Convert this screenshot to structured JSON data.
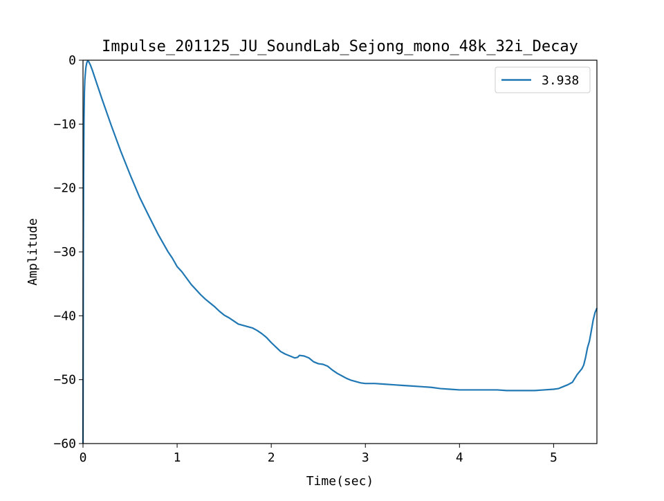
{
  "chart_data": {
    "type": "line",
    "title": "Impulse_201125_JU_SoundLab_Sejong_mono_48k_32i_Decay",
    "xlabel": "Time(sec)",
    "ylabel": "Amplitude",
    "xlim": [
      0,
      5.46
    ],
    "ylim": [
      -60,
      0
    ],
    "xticks": [
      0,
      1,
      2,
      3,
      4,
      5
    ],
    "xtick_labels": [
      "0",
      "1",
      "2",
      "3",
      "4",
      "5"
    ],
    "yticks": [
      0,
      -10,
      -20,
      -30,
      -40,
      -50,
      -60
    ],
    "ytick_labels": [
      "0",
      "−10",
      "−20",
      "−30",
      "−40",
      "−50",
      "−60"
    ],
    "grid": false,
    "legend_position": "top-right",
    "color": "#1f77b4",
    "series": [
      {
        "name": "3.938",
        "x": [
          0.0,
          0.003,
          0.006,
          0.01,
          0.015,
          0.02,
          0.03,
          0.04,
          0.05,
          0.06,
          0.08,
          0.1,
          0.15,
          0.2,
          0.3,
          0.4,
          0.5,
          0.6,
          0.7,
          0.8,
          0.85,
          0.9,
          0.95,
          1.0,
          1.05,
          1.1,
          1.15,
          1.2,
          1.25,
          1.3,
          1.35,
          1.4,
          1.45,
          1.5,
          1.55,
          1.6,
          1.65,
          1.7,
          1.75,
          1.8,
          1.85,
          1.9,
          1.95,
          2.0,
          2.05,
          2.1,
          2.15,
          2.2,
          2.25,
          2.28,
          2.3,
          2.35,
          2.4,
          2.45,
          2.5,
          2.55,
          2.6,
          2.65,
          2.7,
          2.75,
          2.8,
          2.85,
          2.9,
          2.95,
          3.0,
          3.1,
          3.2,
          3.3,
          3.4,
          3.5,
          3.6,
          3.7,
          3.8,
          3.9,
          4.0,
          4.1,
          4.2,
          4.3,
          4.4,
          4.5,
          4.6,
          4.7,
          4.8,
          4.9,
          5.0,
          5.05,
          5.1,
          5.15,
          5.2,
          5.25,
          5.3,
          5.32,
          5.34,
          5.36,
          5.38,
          5.4,
          5.42,
          5.44,
          5.46
        ],
        "y": [
          -60.0,
          -33.0,
          -20.0,
          -10.0,
          -5.0,
          -3.0,
          -1.2,
          -0.4,
          -0.1,
          -0.2,
          -0.8,
          -1.6,
          -3.8,
          -6.0,
          -10.2,
          -14.2,
          -17.9,
          -21.4,
          -24.4,
          -27.3,
          -28.6,
          -29.9,
          -31.0,
          -32.3,
          -33.1,
          -34.1,
          -35.1,
          -35.9,
          -36.7,
          -37.4,
          -38.0,
          -38.6,
          -39.3,
          -39.9,
          -40.3,
          -40.8,
          -41.3,
          -41.5,
          -41.7,
          -41.9,
          -42.3,
          -42.8,
          -43.4,
          -44.2,
          -44.9,
          -45.6,
          -46.0,
          -46.3,
          -46.6,
          -46.5,
          -46.2,
          -46.3,
          -46.6,
          -47.2,
          -47.5,
          -47.6,
          -47.9,
          -48.5,
          -49.0,
          -49.4,
          -49.8,
          -50.1,
          -50.3,
          -50.5,
          -50.6,
          -50.6,
          -50.7,
          -50.8,
          -50.9,
          -51.0,
          -51.1,
          -51.2,
          -51.4,
          -51.5,
          -51.6,
          -51.6,
          -51.6,
          -51.6,
          -51.6,
          -51.7,
          -51.7,
          -51.7,
          -51.7,
          -51.6,
          -51.5,
          -51.4,
          -51.1,
          -50.8,
          -50.4,
          -49.2,
          -48.3,
          -47.7,
          -46.5,
          -45.0,
          -44.0,
          -42.4,
          -40.7,
          -39.5,
          -38.8
        ]
      }
    ]
  }
}
